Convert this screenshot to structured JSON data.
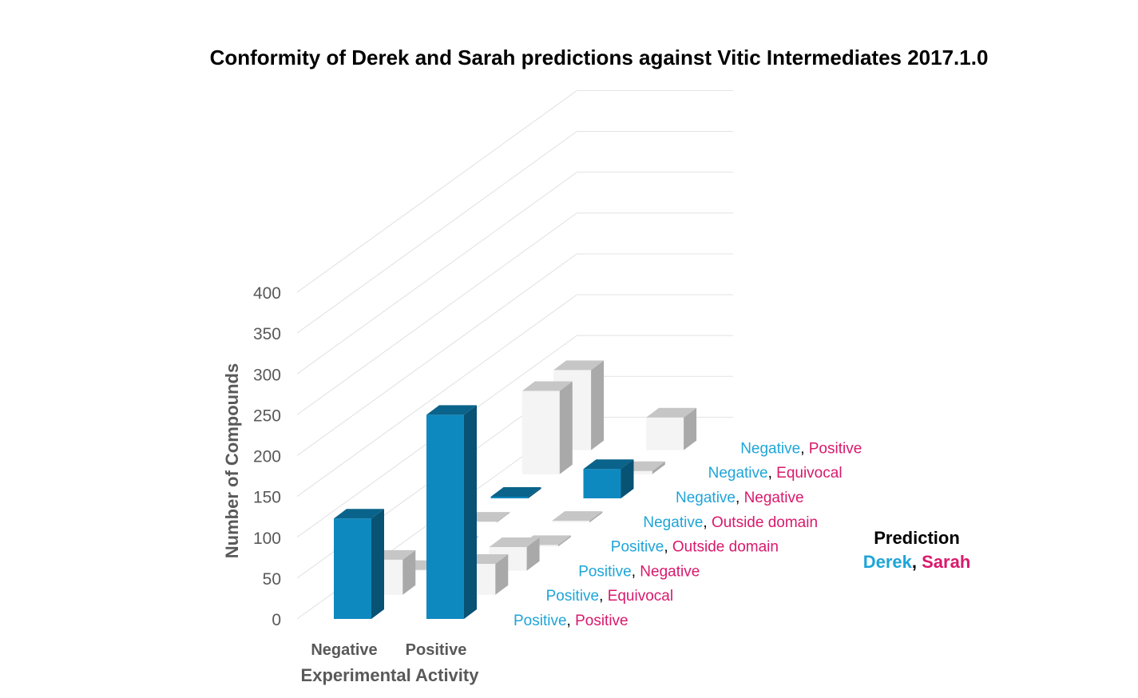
{
  "chart_data": {
    "type": "bar",
    "title": "Conformity of Derek and Sarah predictions against Vitic Intermediates 2017.1.0",
    "xlabel": "Experimental Activity",
    "ylabel": "Number of Compounds",
    "ylim": [
      0,
      400
    ],
    "yticks": [
      "0",
      "50",
      "100",
      "150",
      "200",
      "250",
      "300",
      "350",
      "400"
    ],
    "categories": [
      "Negative",
      "Positive"
    ],
    "legend": {
      "title": "Prediction",
      "derek_label": "Derek",
      "sarah_label": "Sarah",
      "separator": ", "
    },
    "colors": {
      "derek": "#1ea5d8",
      "sarah": "#d9196c",
      "highlight_bar": "#0e89c0",
      "neutral_bar": "#f4f4f4"
    },
    "series": [
      {
        "derek": "Positive",
        "sarah": "Positive",
        "values": [
          123,
          250
        ],
        "highlight": [
          true,
          true
        ]
      },
      {
        "derek": "Positive",
        "sarah": "Equivocal",
        "values": [
          43,
          38
        ],
        "highlight": [
          false,
          false
        ]
      },
      {
        "derek": "Positive",
        "sarah": "Negative",
        "values": [
          1,
          29
        ],
        "highlight": [
          false,
          false
        ]
      },
      {
        "derek": "Positive",
        "sarah": "Outside domain",
        "values": [
          0,
          2
        ],
        "highlight": [
          false,
          false
        ]
      },
      {
        "derek": "Negative",
        "sarah": "Outside domain",
        "values": [
          1,
          2
        ],
        "highlight": [
          false,
          false
        ]
      },
      {
        "derek": "Negative",
        "sarah": "Negative",
        "values": [
          2,
          36
        ],
        "highlight": [
          true,
          true
        ]
      },
      {
        "derek": "Negative",
        "sarah": "Equivocal",
        "values": [
          102,
          4
        ],
        "highlight": [
          false,
          false
        ]
      },
      {
        "derek": "Negative",
        "sarah": "Positive",
        "values": [
          98,
          40
        ],
        "highlight": [
          false,
          false
        ]
      }
    ],
    "grid": true
  }
}
